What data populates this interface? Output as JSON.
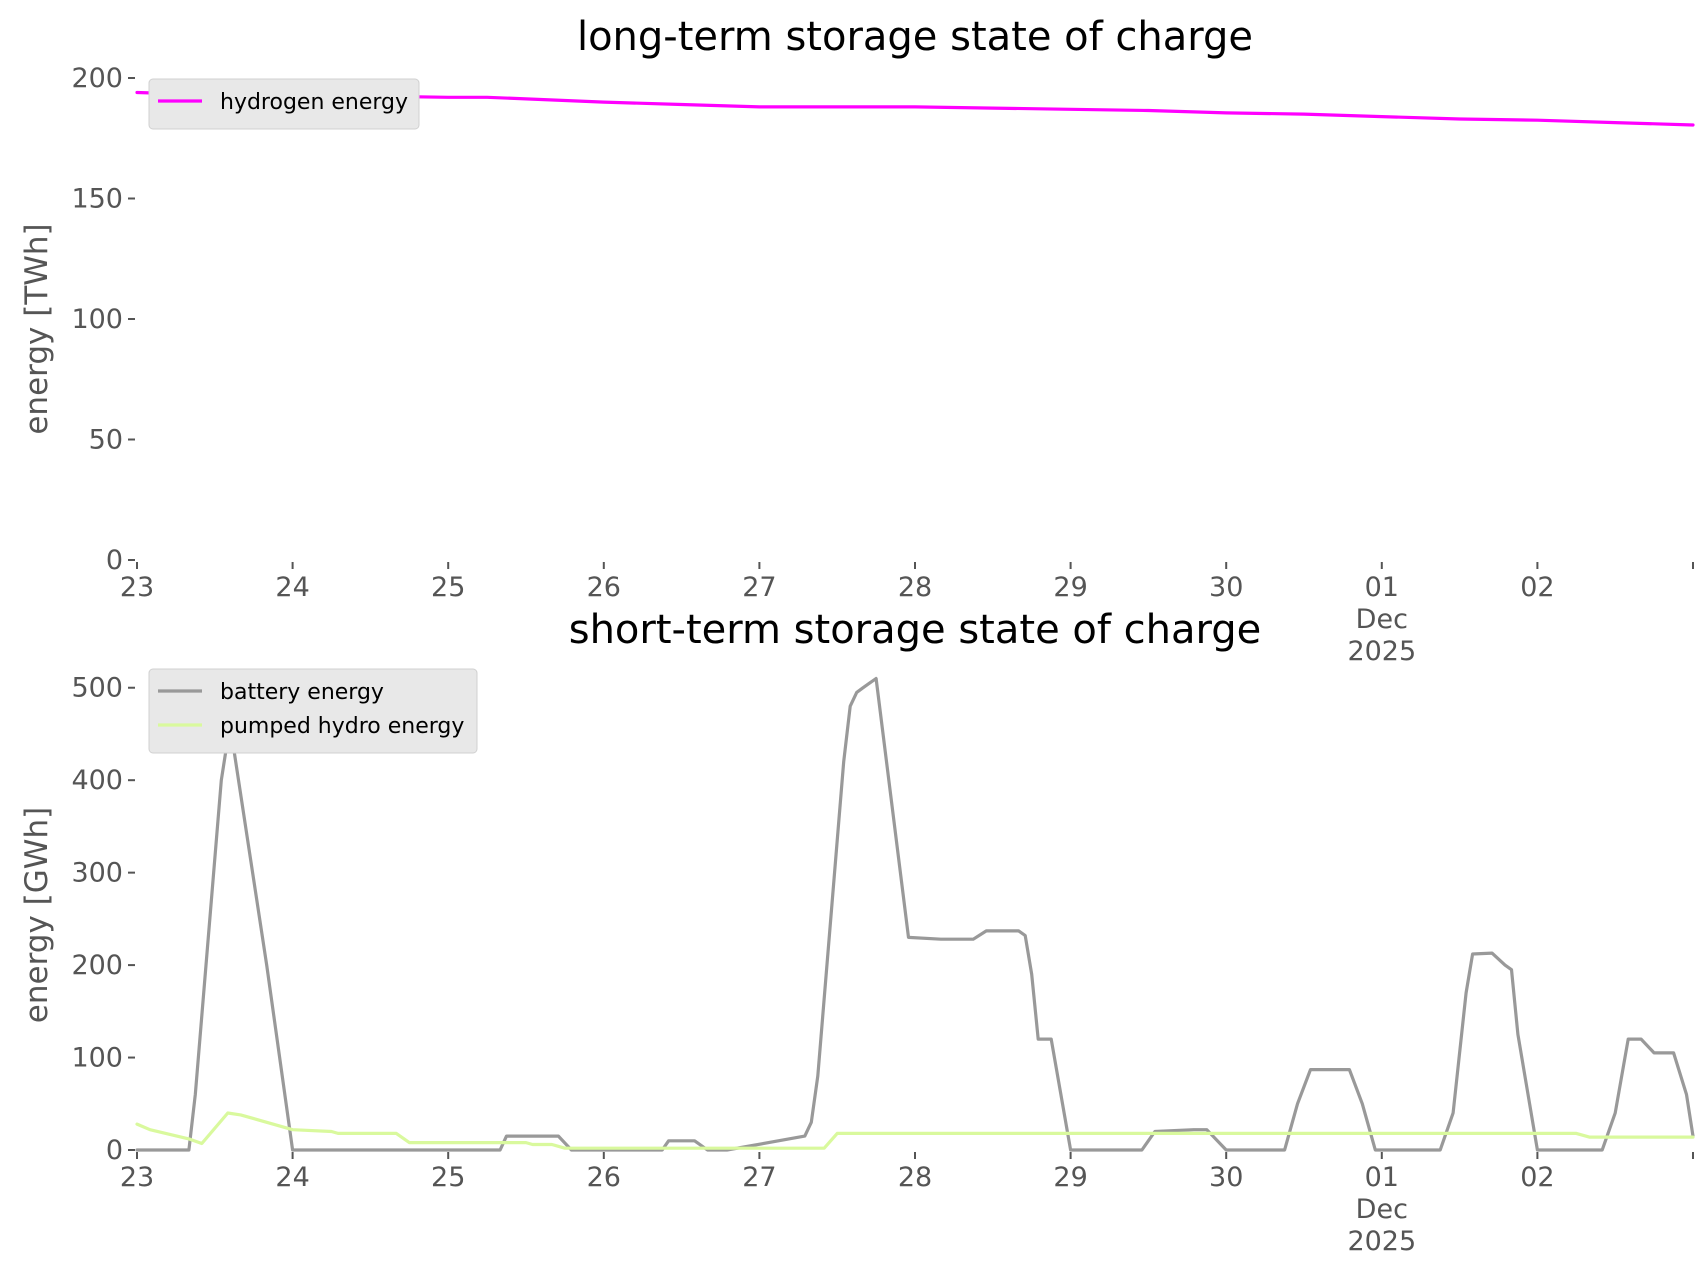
{
  "chart_data": [
    {
      "type": "line",
      "title": "long-term storage state of charge",
      "ylabel": "energy [TWh]",
      "xlabel": "",
      "ylim": [
        0,
        200
      ],
      "yticks": [
        0,
        50,
        100,
        150,
        200
      ],
      "x_unit": "days",
      "xlim": [
        "2025-11-23",
        "2025-12-03"
      ],
      "xtick_labels": [
        {
          "date": "2025-11-23",
          "lines": [
            "23"
          ]
        },
        {
          "date": "2025-11-24",
          "lines": [
            "24"
          ]
        },
        {
          "date": "2025-11-25",
          "lines": [
            "25"
          ]
        },
        {
          "date": "2025-11-26",
          "lines": [
            "26"
          ]
        },
        {
          "date": "2025-11-27",
          "lines": [
            "27"
          ]
        },
        {
          "date": "2025-11-28",
          "lines": [
            "28"
          ]
        },
        {
          "date": "2025-11-29",
          "lines": [
            "29"
          ]
        },
        {
          "date": "2025-11-30",
          "lines": [
            "30"
          ]
        },
        {
          "date": "2025-12-01",
          "lines": [
            "01",
            "Dec",
            "2025"
          ]
        },
        {
          "date": "2025-12-02",
          "lines": [
            "02"
          ]
        }
      ],
      "legend_position": "upper-left",
      "grid": false,
      "series": [
        {
          "name": "hydrogen energy",
          "color": "#ff00ff",
          "x": [
            "2025-11-23T00:00",
            "2025-11-23T12:00",
            "2025-11-24T00:00",
            "2025-11-25T00:00",
            "2025-11-25T06:00",
            "2025-11-26T00:00",
            "2025-11-26T12:00",
            "2025-11-27T00:00",
            "2025-11-28T00:00",
            "2025-11-28T12:00",
            "2025-11-29T00:00",
            "2025-11-29T12:00",
            "2025-11-30T00:00",
            "2025-11-30T12:00",
            "2025-12-01T00:00",
            "2025-12-01T12:00",
            "2025-12-02T00:00",
            "2025-12-02T12:00",
            "2025-12-03T00:00"
          ],
          "y": [
            194,
            193,
            193,
            192,
            192,
            190,
            189,
            188,
            188,
            187.5,
            187,
            186.5,
            185.5,
            185,
            184,
            183,
            182.5,
            181.5,
            180.5
          ]
        }
      ]
    },
    {
      "type": "line",
      "title": "short-term storage state of charge",
      "ylabel": "energy [GWh]",
      "xlabel": "",
      "ylim": [
        0,
        530
      ],
      "yticks": [
        0,
        100,
        200,
        300,
        400,
        500
      ],
      "x_unit": "days",
      "xlim": [
        "2025-11-23",
        "2025-12-03"
      ],
      "xtick_labels": [
        {
          "date": "2025-11-23",
          "lines": [
            "23"
          ]
        },
        {
          "date": "2025-11-24",
          "lines": [
            "24"
          ]
        },
        {
          "date": "2025-11-25",
          "lines": [
            "25"
          ]
        },
        {
          "date": "2025-11-26",
          "lines": [
            "26"
          ]
        },
        {
          "date": "2025-11-27",
          "lines": [
            "27"
          ]
        },
        {
          "date": "2025-11-28",
          "lines": [
            "28"
          ]
        },
        {
          "date": "2025-11-29",
          "lines": [
            "29"
          ]
        },
        {
          "date": "2025-11-30",
          "lines": [
            "30"
          ]
        },
        {
          "date": "2025-12-01",
          "lines": [
            "01",
            "Dec",
            "2025"
          ]
        },
        {
          "date": "2025-12-02",
          "lines": [
            "02"
          ]
        }
      ],
      "legend_position": "upper-left",
      "grid": false,
      "series": [
        {
          "name": "battery energy",
          "color": "#999999",
          "x": [
            "2025-11-23T00:00",
            "2025-11-23T08:00",
            "2025-11-23T09:00",
            "2025-11-23T13:00",
            "2025-11-23T14:00",
            "2025-11-23T15:00",
            "2025-11-23T20:00",
            "2025-11-24T00:00",
            "2025-11-25T08:00",
            "2025-11-25T09:00",
            "2025-11-25T17:00",
            "2025-11-25T19:00",
            "2025-11-26T06:00",
            "2025-11-26T09:00",
            "2025-11-26T10:00",
            "2025-11-26T14:00",
            "2025-11-26T16:00",
            "2025-11-26T19:00",
            "2025-11-27T07:00",
            "2025-11-27T08:00",
            "2025-11-27T09:00",
            "2025-11-27T13:00",
            "2025-11-27T14:00",
            "2025-11-27T15:00",
            "2025-11-27T16:00",
            "2025-11-27T17:00",
            "2025-11-27T18:00",
            "2025-11-27T23:00",
            "2025-11-28T04:00",
            "2025-11-28T06:00",
            "2025-11-28T09:00",
            "2025-11-28T11:00",
            "2025-11-28T12:00",
            "2025-11-28T16:00",
            "2025-11-28T17:00",
            "2025-11-28T18:00",
            "2025-11-28T19:00",
            "2025-11-28T21:00",
            "2025-11-29T00:00",
            "2025-11-29T11:00",
            "2025-11-29T13:00",
            "2025-11-29T19:00",
            "2025-11-29T21:00",
            "2025-11-30T00:00",
            "2025-11-30T09:00",
            "2025-11-30T11:00",
            "2025-11-30T13:00",
            "2025-11-30T19:00",
            "2025-11-30T21:00",
            "2025-11-30T23:00",
            "2025-12-01T09:00",
            "2025-12-01T11:00",
            "2025-12-01T13:00",
            "2025-12-01T14:00",
            "2025-12-01T17:00",
            "2025-12-01T19:00",
            "2025-12-01T20:00",
            "2025-12-01T21:00",
            "2025-12-02T00:00",
            "2025-12-02T10:00",
            "2025-12-02T12:00",
            "2025-12-02T14:00",
            "2025-12-02T16:00",
            "2025-12-02T18:00",
            "2025-12-02T21:00",
            "2025-12-02T23:00",
            "2025-12-03T00:00"
          ],
          "y": [
            0,
            0,
            60,
            400,
            445,
            430,
            200,
            0,
            0,
            15,
            15,
            0,
            0,
            0,
            10,
            10,
            0,
            0,
            15,
            30,
            80,
            420,
            480,
            495,
            500,
            505,
            510,
            230,
            228,
            228,
            228,
            237,
            237,
            237,
            232,
            190,
            120,
            120,
            0,
            0,
            20,
            22,
            22,
            0,
            0,
            50,
            87,
            87,
            50,
            0,
            0,
            40,
            170,
            212,
            213,
            200,
            195,
            125,
            0,
            0,
            40,
            120,
            120,
            105,
            105,
            60,
            15
          ]
        },
        {
          "name": "pumped hydro energy",
          "color": "#d9f99d",
          "x": [
            "2025-11-23T00:00",
            "2025-11-23T02:00",
            "2025-11-23T08:00",
            "2025-11-23T10:00",
            "2025-11-23T14:00",
            "2025-11-23T16:00",
            "2025-11-23T20:00",
            "2025-11-24T00:00",
            "2025-11-24T06:00",
            "2025-11-24T07:00",
            "2025-11-24T16:00",
            "2025-11-24T18:00",
            "2025-11-25T00:00",
            "2025-11-25T12:00",
            "2025-11-25T13:00",
            "2025-11-25T16:00",
            "2025-11-25T18:00",
            "2025-11-26T00:00",
            "2025-11-27T00:00",
            "2025-11-27T10:00",
            "2025-11-27T12:00",
            "2025-11-27T18:00",
            "2025-11-28T00:00",
            "2025-11-29T00:00",
            "2025-11-30T00:00",
            "2025-12-01T00:00",
            "2025-12-02T00:00",
            "2025-12-02T06:00",
            "2025-12-02T08:00",
            "2025-12-03T00:00"
          ],
          "y": [
            28,
            22,
            12,
            7,
            40,
            38,
            30,
            22,
            20,
            18,
            18,
            8,
            8,
            8,
            6,
            6,
            2,
            2,
            2,
            2,
            18,
            18,
            18,
            18,
            18,
            18,
            18,
            18,
            14,
            14
          ]
        }
      ]
    }
  ]
}
